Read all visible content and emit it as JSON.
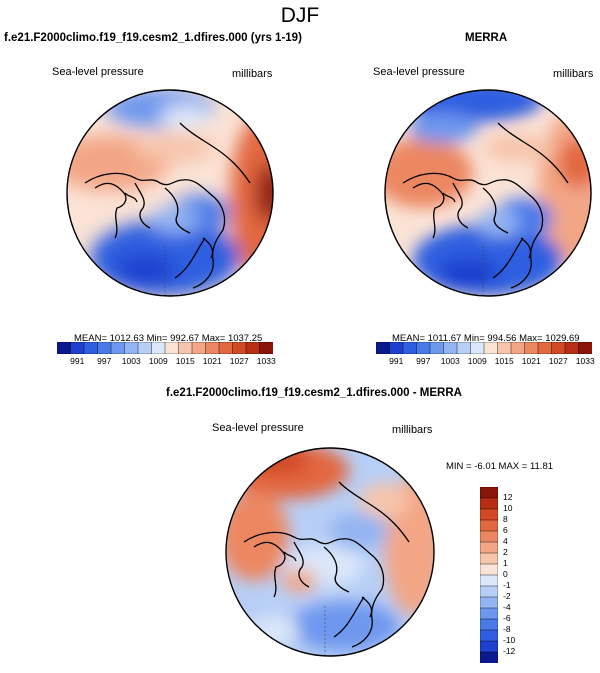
{
  "page_title": "DJF",
  "panels": [
    {
      "id": "model",
      "title": "f.e21.F2000climo.f19_f19.cesm2_1.dfires.000 (yrs 1-19)",
      "variable_label": "Sea-level pressure",
      "units_label": "millibars",
      "stats": "MEAN= 1012.63  Min= 992.67  Max= 1037.25",
      "stats_values": {
        "mean": 1012.63,
        "min": 992.67,
        "max": 1037.25
      }
    },
    {
      "id": "obs",
      "title": "MERRA",
      "variable_label": "Sea-level pressure",
      "units_label": "millibars",
      "stats": "MEAN= 1011.67  Min= 994.56  Max= 1029.69",
      "stats_values": {
        "mean": 1011.67,
        "min": 994.56,
        "max": 1029.69
      }
    },
    {
      "id": "diff",
      "title": "f.e21.F2000climo.f19_f19.cesm2_1.dfires.000 - MERRA",
      "variable_label": "Sea-level pressure",
      "units_label": "millibars",
      "stats": "MIN = -6.01  MAX = 11.81",
      "stats_values": {
        "min": -6.01,
        "max": 11.81
      }
    }
  ],
  "colorbar_abs": {
    "tick_labels": [
      "991",
      "997",
      "1003",
      "1009",
      "1015",
      "1021",
      "1027",
      "1033"
    ],
    "colors": [
      "#0a1a8c",
      "#1f3fcf",
      "#2f5fe0",
      "#4a7ae8",
      "#6e97ee",
      "#93b4f2",
      "#b7cff6",
      "#dbe7fa",
      "#fbe3d6",
      "#f7c5ab",
      "#f3a686",
      "#ec8762",
      "#e2683f",
      "#d24a25",
      "#b72e14",
      "#8a1408"
    ]
  },
  "colorbar_diff": {
    "tick_labels": [
      "12",
      "10",
      "8",
      "6",
      "4",
      "2",
      "1",
      "0",
      "-1",
      "-2",
      "-4",
      "-6",
      "-8",
      "-10",
      "-12"
    ],
    "colors": [
      "#8a1408",
      "#b72e14",
      "#d24a25",
      "#e2683f",
      "#ec8762",
      "#f3a686",
      "#f7c5ab",
      "#fbe3d6",
      "#dbe7fa",
      "#b7cff6",
      "#93b4f2",
      "#6e97ee",
      "#4a7ae8",
      "#2f5fe0",
      "#1f3fcf",
      "#0a1a8c"
    ]
  },
  "map_info": {
    "projection": "polar-stereographic",
    "hemisphere": "north",
    "variable": "Sea-level pressure",
    "units": "millibars",
    "season": "DJF"
  }
}
